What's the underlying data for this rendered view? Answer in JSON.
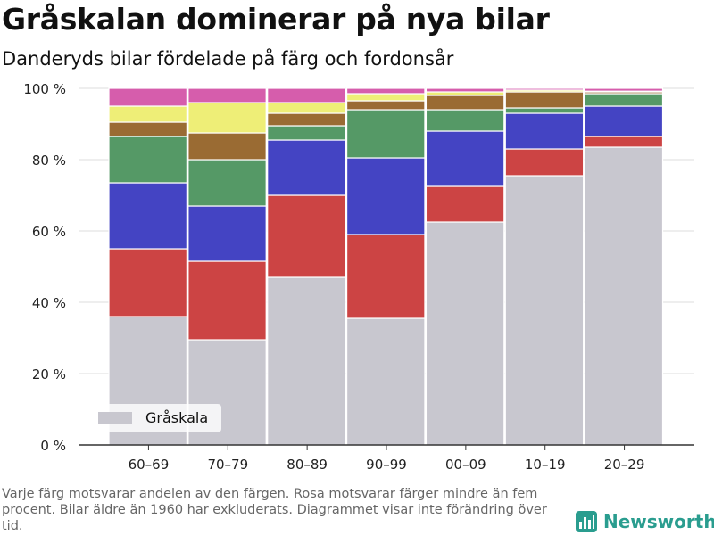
{
  "header": {
    "title": "Gråskalan dominerar på nya bilar",
    "subtitle": "Danderyds bilar fördelade på färg och fordonsår"
  },
  "footer": {
    "note": "Varje färg motsvarar andelen av den färgen. Rosa motsvarar färger mindre än fem procent. Bilar äldre än 1960 har exkluderats. Diagrammet visar inte förändring över tid.",
    "brand": "Newsworthy",
    "brand_color": "#2a9d8f"
  },
  "chart_data": {
    "type": "bar",
    "stacked": true,
    "normalized": true,
    "categories": [
      "60–69",
      "70–79",
      "80–89",
      "90–99",
      "00–09",
      "10–19",
      "20–29"
    ],
    "ylim": [
      0,
      100
    ],
    "y_ticks": [
      0,
      20,
      40,
      60,
      80,
      100
    ],
    "y_tick_suffix": " %",
    "grid": true,
    "legend": {
      "position": "bottom-left",
      "entries": [
        "Gråskala"
      ]
    },
    "series": [
      {
        "name": "Gråskala",
        "color": "#c8c7cf",
        "values": [
          36,
          29.5,
          47,
          35.5,
          62.5,
          75.5,
          83.5
        ]
      },
      {
        "color": "#cc4444",
        "values": [
          19,
          22,
          23,
          23.5,
          10,
          7.5,
          3
        ]
      },
      {
        "color": "#4444c3",
        "values": [
          18.5,
          15.5,
          15.5,
          21.5,
          15.5,
          10,
          8.5
        ]
      },
      {
        "color": "#559966",
        "values": [
          13,
          13,
          4,
          13.5,
          6,
          1.5,
          3.5
        ]
      },
      {
        "color": "#9a6b33",
        "values": [
          4,
          7.5,
          3.5,
          2.5,
          4,
          4.5,
          0.5
        ]
      },
      {
        "color": "#eeee77",
        "values": [
          4.5,
          8.5,
          3,
          2,
          1,
          0.5,
          0.2
        ]
      },
      {
        "color": "#d65dac",
        "values": [
          5,
          4,
          4,
          1.5,
          1,
          0.5,
          0.8
        ]
      }
    ]
  }
}
